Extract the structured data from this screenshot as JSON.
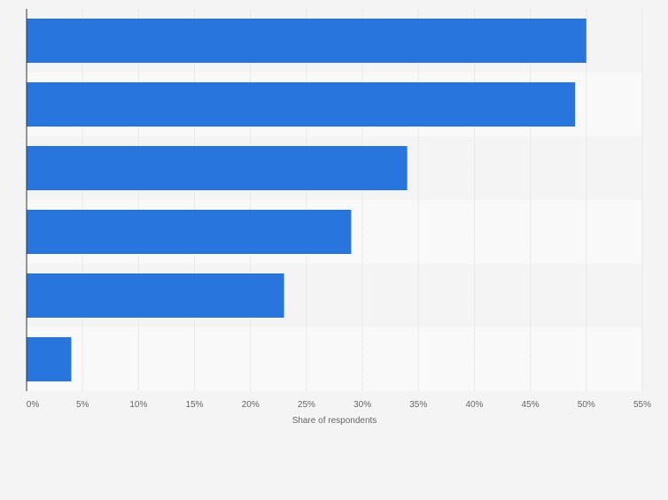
{
  "chart_data": {
    "type": "bar",
    "orientation": "horizontal",
    "categories": [
      "",
      "",
      "",
      "",
      "",
      ""
    ],
    "values": [
      50,
      49,
      34,
      29,
      23,
      4
    ],
    "bar_color": "#2876dd",
    "band_colors": [
      "#f4f4f4",
      "#f9f9f9"
    ],
    "xlim": [
      0,
      55
    ],
    "xticks": [
      0,
      5,
      10,
      15,
      20,
      25,
      30,
      35,
      40,
      45,
      50,
      55
    ],
    "tick_labels": [
      "0%",
      "5%",
      "10%",
      "15%",
      "20%",
      "25%",
      "30%",
      "35%",
      "40%",
      "45%",
      "50%",
      "55%"
    ],
    "xlabel": "Share of respondents",
    "ylabel": "",
    "title": "",
    "grid": true,
    "legend": "none"
  }
}
